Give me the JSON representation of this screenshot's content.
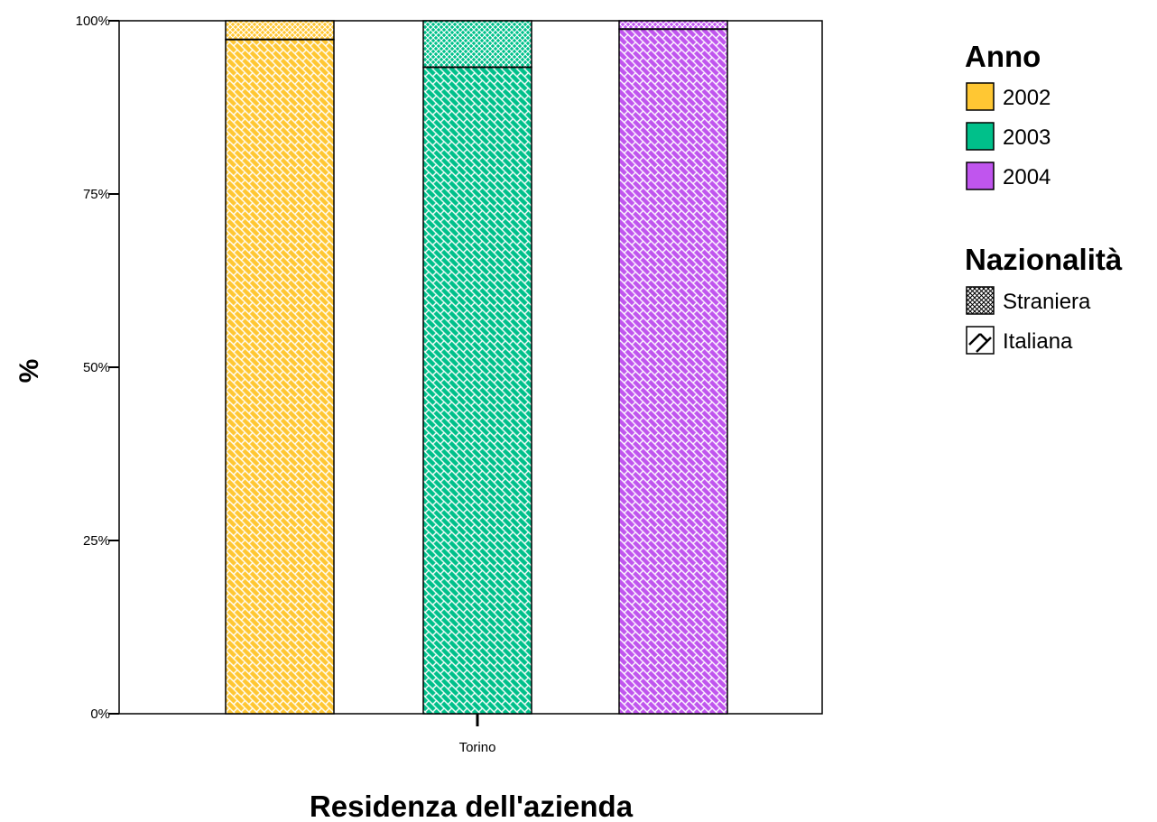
{
  "chart_data": {
    "type": "bar",
    "stacked": true,
    "percent": true,
    "categories": [
      "Torino"
    ],
    "groups": [
      {
        "name": "2002",
        "color": "#ffc733",
        "segments": {
          "Italiana": 97.3,
          "Straniera": 2.7
        }
      },
      {
        "name": "2003",
        "color": "#00c08a",
        "segments": {
          "Italiana": 93.3,
          "Straniera": 6.7
        }
      },
      {
        "name": "2004",
        "color": "#c055ee",
        "segments": {
          "Italiana": 98.8,
          "Straniera": 1.2
        }
      }
    ],
    "xlabel": "Residenza dell'azienda",
    "ylabel": "%",
    "ylim": [
      0,
      100
    ],
    "yticks": [
      "0%",
      "25%",
      "50%",
      "75%",
      "100%"
    ],
    "yticks_values": [
      0,
      25,
      50,
      75,
      100
    ],
    "grid": false,
    "legend_position": "right",
    "legend": {
      "anno_title": "Anno",
      "anno_items": [
        "2002",
        "2003",
        "2004"
      ],
      "naz_title": "Nazionalità",
      "naz_items": [
        "Straniera",
        "Italiana"
      ]
    }
  }
}
